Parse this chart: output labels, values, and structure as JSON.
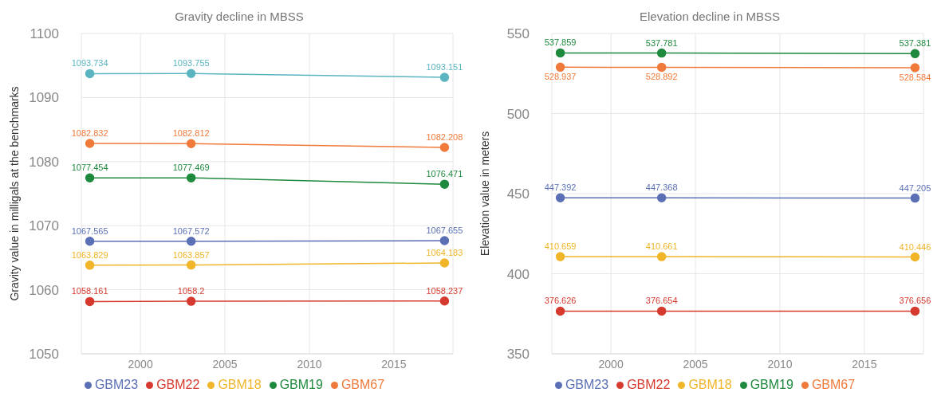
{
  "chart_data": [
    {
      "type": "line",
      "title": "Gravity decline in MBSS",
      "ylabel": "Gravity value in milligals at the benchmarks",
      "x": [
        1997,
        2003,
        2018
      ],
      "xlim": [
        1996.5,
        2018.5
      ],
      "xticks": [
        2000,
        2005,
        2010,
        2015
      ],
      "ylim": [
        1050,
        1100
      ],
      "yticks": [
        1050,
        1060,
        1070,
        1080,
        1090,
        1100
      ],
      "grid": true,
      "legend": "bottom",
      "marker": "circle",
      "data_labels": true,
      "series": [
        {
          "name": "GBM23",
          "color": "#5b6fb5",
          "values": [
            1067.565,
            1067.572,
            1067.655
          ]
        },
        {
          "name": "GBM22",
          "color": "#d63a2e",
          "values": [
            1058.161,
            1058.2,
            1058.237
          ]
        },
        {
          "name": "GBM18",
          "color": "#f0b528",
          "values": [
            1063.829,
            1063.857,
            1064.183
          ]
        },
        {
          "name": "GBM19",
          "color": "#1e8a3e",
          "values": [
            1077.454,
            1077.469,
            1076.471
          ]
        },
        {
          "name": "GBM67",
          "color": "#f07a3a",
          "values": [
            1082.832,
            1082.812,
            1082.208
          ]
        },
        {
          "color": "#5bb5c0",
          "values": [
            1093.734,
            1093.755,
            1093.151
          ]
        }
      ]
    },
    {
      "type": "line",
      "title": "Elevation decline in MBSS",
      "ylabel": "Elevation value in  meters",
      "x": [
        1997,
        2003,
        2018
      ],
      "xlim": [
        1996.5,
        2018.5
      ],
      "xticks": [
        2000,
        2005,
        2010,
        2015
      ],
      "ylim": [
        350,
        550
      ],
      "yticks": [
        350,
        400,
        450,
        500,
        550
      ],
      "grid": true,
      "legend": "bottom",
      "marker": "circle",
      "data_labels": true,
      "series": [
        {
          "name": "GBM23",
          "color": "#5b6fb5",
          "values": [
            447.392,
            447.368,
            447.205
          ]
        },
        {
          "name": "GBM22",
          "color": "#d63a2e",
          "values": [
            376.626,
            376.654,
            376.656
          ]
        },
        {
          "name": "GBM18",
          "color": "#f0b528",
          "values": [
            410.659,
            410.661,
            410.446
          ]
        },
        {
          "name": "GBM19",
          "color": "#1e8a3e",
          "values": [
            537.859,
            537.781,
            537.381
          ]
        },
        {
          "name": "GBM67",
          "color": "#f07a3a",
          "values": [
            528.937,
            528.892,
            528.584
          ]
        }
      ]
    }
  ]
}
